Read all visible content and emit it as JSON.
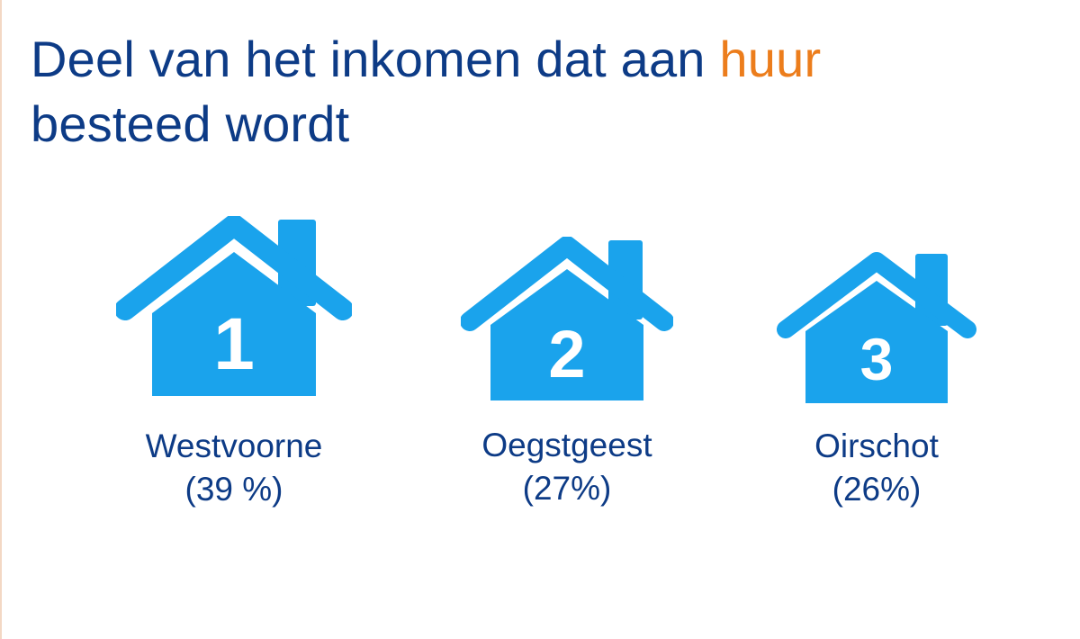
{
  "title": {
    "part1": "Deel van het inkomen dat aan ",
    "accent": "huur",
    "part2": "besteed wordt"
  },
  "colors": {
    "title": "#0d3b86",
    "accent": "#ec7d1c",
    "house": "#1aa3ec",
    "label": "#0d3b86"
  },
  "ranking": [
    {
      "rank": "1",
      "name": "Westvoorne",
      "share": "(39 %)",
      "icon": "house-icon"
    },
    {
      "rank": "2",
      "name": "Oegstgeest",
      "share": "(27%)",
      "icon": "house-icon"
    },
    {
      "rank": "3",
      "name": "Oirschot",
      "share": "(26%)",
      "icon": "house-icon"
    }
  ]
}
